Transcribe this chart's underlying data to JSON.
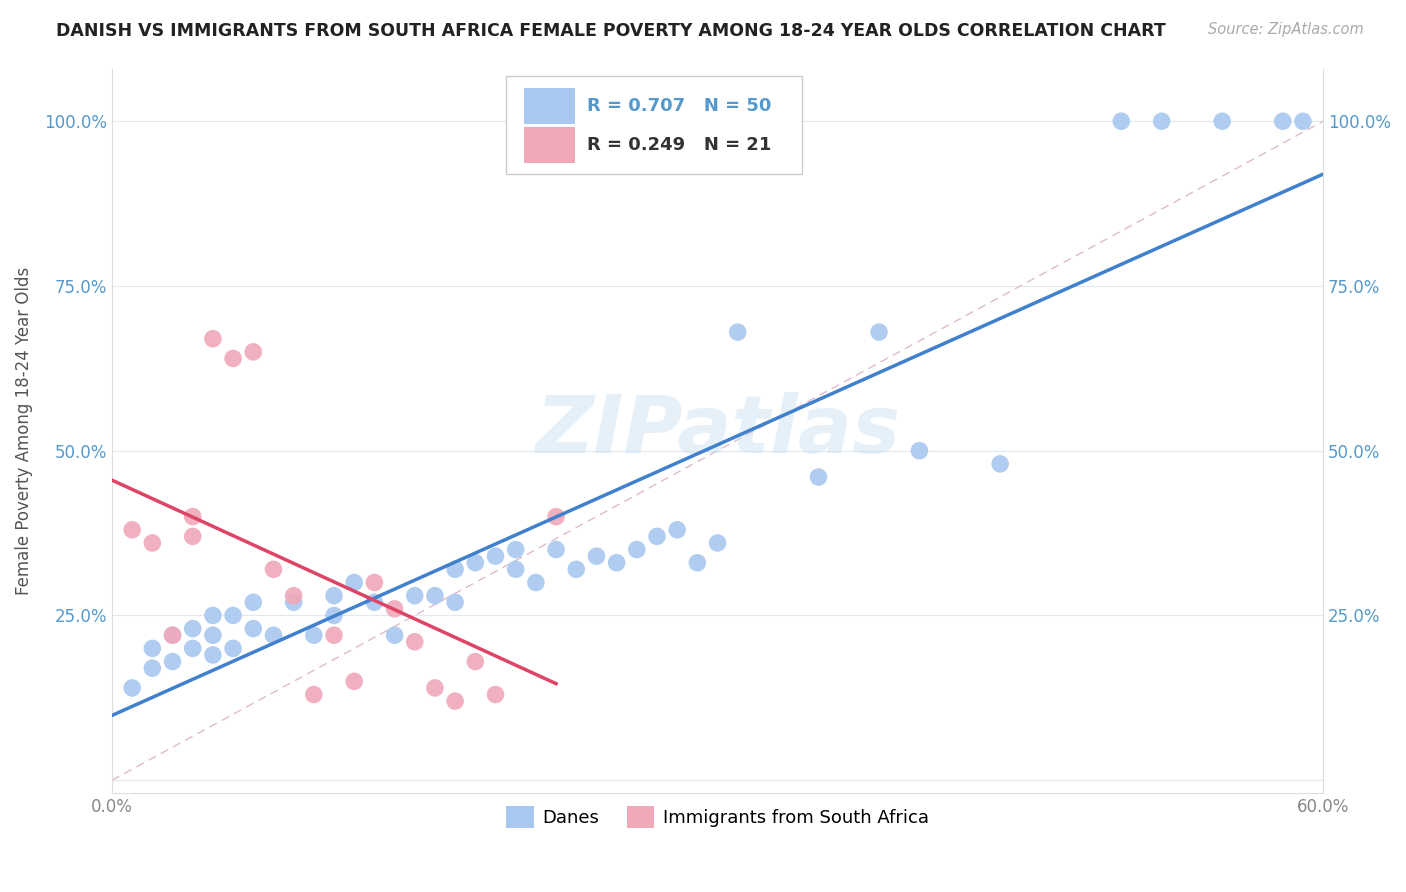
{
  "title": "DANISH VS IMMIGRANTS FROM SOUTH AFRICA FEMALE POVERTY AMONG 18-24 YEAR OLDS CORRELATION CHART",
  "source": "Source: ZipAtlas.com",
  "ylabel": "Female Poverty Among 18-24 Year Olds",
  "xlim": [
    0.0,
    0.6
  ],
  "ylim": [
    -0.02,
    1.08
  ],
  "danes_color": "#a8c8f0",
  "immigrants_color": "#f0a8b8",
  "danes_line_color": "#4080cc",
  "immigrants_line_color": "#dd4466",
  "danes_R": 0.707,
  "danes_N": 50,
  "immigrants_R": 0.249,
  "immigrants_N": 21,
  "legend_label_danes": "Danes",
  "legend_label_immigrants": "Immigrants from South Africa",
  "watermark": "ZIPatlas",
  "danes_x": [
    0.01,
    0.02,
    0.02,
    0.03,
    0.03,
    0.04,
    0.04,
    0.05,
    0.05,
    0.05,
    0.06,
    0.06,
    0.07,
    0.07,
    0.08,
    0.09,
    0.1,
    0.11,
    0.11,
    0.12,
    0.13,
    0.14,
    0.15,
    0.16,
    0.17,
    0.17,
    0.18,
    0.19,
    0.2,
    0.2,
    0.21,
    0.22,
    0.23,
    0.24,
    0.25,
    0.26,
    0.27,
    0.28,
    0.29,
    0.3,
    0.31,
    0.35,
    0.38,
    0.4,
    0.44,
    0.5,
    0.52,
    0.55,
    0.58,
    0.59
  ],
  "danes_y": [
    0.14,
    0.17,
    0.2,
    0.18,
    0.22,
    0.2,
    0.23,
    0.19,
    0.22,
    0.25,
    0.2,
    0.25,
    0.23,
    0.27,
    0.22,
    0.27,
    0.22,
    0.28,
    0.25,
    0.3,
    0.27,
    0.22,
    0.28,
    0.28,
    0.27,
    0.32,
    0.33,
    0.34,
    0.35,
    0.32,
    0.3,
    0.35,
    0.32,
    0.34,
    0.33,
    0.35,
    0.37,
    0.38,
    0.33,
    0.36,
    0.68,
    0.46,
    0.68,
    0.5,
    0.48,
    1.0,
    1.0,
    1.0,
    1.0,
    1.0
  ],
  "immigrants_x": [
    0.01,
    0.02,
    0.03,
    0.04,
    0.04,
    0.05,
    0.06,
    0.07,
    0.08,
    0.09,
    0.1,
    0.11,
    0.12,
    0.13,
    0.14,
    0.15,
    0.16,
    0.17,
    0.18,
    0.19,
    0.22
  ],
  "immigrants_y": [
    0.38,
    0.36,
    0.22,
    0.4,
    0.37,
    0.67,
    0.64,
    0.65,
    0.32,
    0.28,
    0.13,
    0.22,
    0.15,
    0.3,
    0.26,
    0.21,
    0.14,
    0.12,
    0.18,
    0.13,
    0.4
  ],
  "y_ticks": [
    0.0,
    0.25,
    0.5,
    0.75,
    1.0
  ],
  "y_tick_labels": [
    "",
    "25.0%",
    "50.0%",
    "75.0%",
    "100.0%"
  ],
  "x_ticks": [
    0.0,
    0.1,
    0.2,
    0.3,
    0.4,
    0.5,
    0.6
  ],
  "x_tick_labels": [
    "0.0%",
    "",
    "",
    "",
    "",
    "",
    "60.0%"
  ],
  "tick_color": "#5599cc",
  "grid_color": "#e0e8f0",
  "diag_color": "#ccbbcc"
}
